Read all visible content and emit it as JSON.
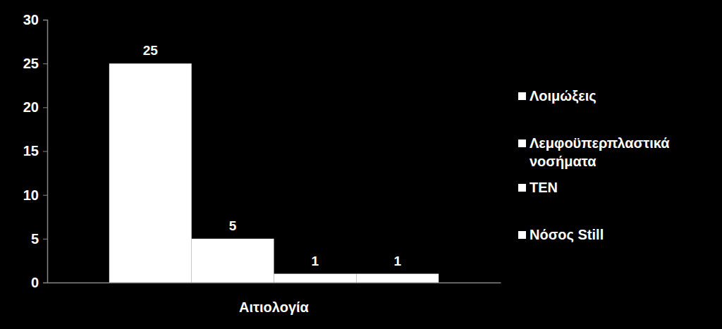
{
  "chart_data": {
    "type": "bar",
    "categories": [
      "Αιτιολογία"
    ],
    "series": [
      {
        "name": "Λοιμώξεις",
        "color": "#ffffff",
        "values": [
          25
        ]
      },
      {
        "name": "Λεμφοϋπερπλαστικά νοσήματα",
        "color": "#ffffff",
        "values": [
          5
        ]
      },
      {
        "name": "TEN",
        "color": "#ffffff",
        "values": [
          1
        ]
      },
      {
        "name": "Νόσος Still",
        "color": "#ffffff",
        "values": [
          1
        ]
      }
    ],
    "ylim": [
      0,
      30
    ],
    "yticks": [
      0,
      5,
      10,
      15,
      20,
      25,
      30
    ],
    "data_labels": true,
    "legend": "right",
    "grid": false
  }
}
